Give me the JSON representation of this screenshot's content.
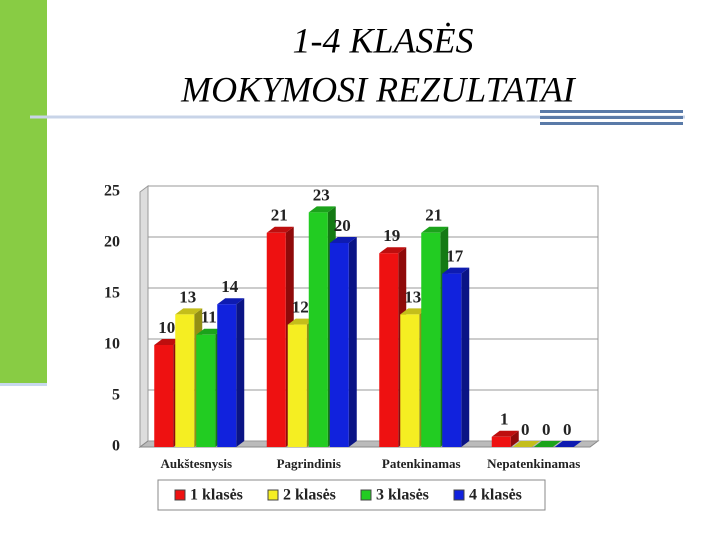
{
  "chart_data": {
    "type": "bar",
    "title": [
      "1-4 KLASĖS",
      "MOKYMOSI REZULTATAI"
    ],
    "categories": [
      "Aukštesnysis",
      "Pagrindinis",
      "Patenkinamas",
      "Nepatenkinamas"
    ],
    "series": [
      {
        "name": "1 klasės",
        "color": "#ee1111",
        "values": [
          10,
          21,
          19,
          1
        ]
      },
      {
        "name": "2 klasės",
        "color": "#f5ee22",
        "values": [
          13,
          12,
          13,
          0
        ]
      },
      {
        "name": "3 klasės",
        "color": "#22cc22",
        "values": [
          11,
          23,
          21,
          0
        ]
      },
      {
        "name": "4 klasės",
        "color": "#1122dd",
        "values": [
          14,
          20,
          17,
          0
        ]
      }
    ],
    "ylim": [
      0,
      25
    ],
    "yticks": [
      0,
      5,
      10,
      15,
      20,
      25
    ],
    "grid": true,
    "legend": "bottom"
  }
}
